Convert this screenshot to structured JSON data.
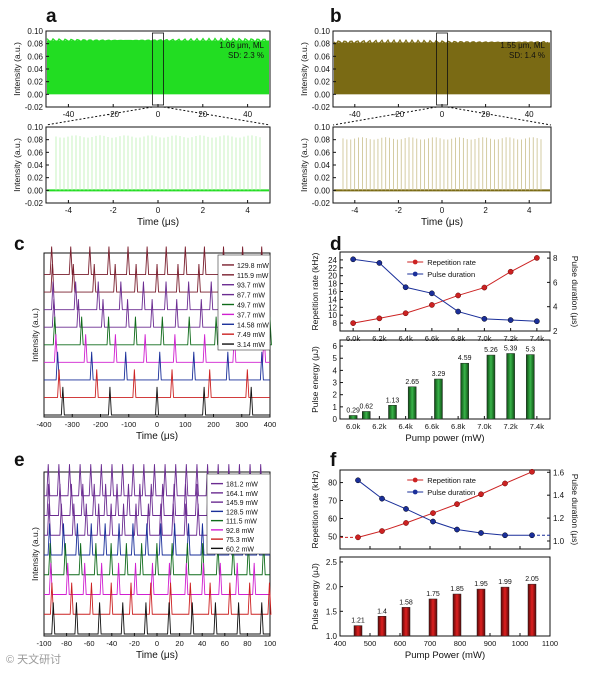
{
  "panel_letters": [
    "a",
    "b",
    "c",
    "d",
    "e",
    "f"
  ],
  "watermark": "© 天文研讨",
  "colors": {
    "green": "#22dd22",
    "olive": "#7a6a14",
    "red": "#cc2222",
    "blue": "#1a2f9a",
    "wine": "#7a1f2e",
    "purple": "#6b2c91",
    "magenta": "#d020d0",
    "darkgreen": "#0f6b1a",
    "black": "#111111"
  },
  "chart_data": [
    {
      "id": "a_top",
      "type": "line",
      "ylabel": "Intensity (a.u.)",
      "yticks": [
        "0.10",
        "0.08",
        "0.06",
        "0.04",
        "0.02",
        "0.00",
        "-0.02"
      ],
      "xticks": [
        "-40",
        "-20",
        "0",
        "20",
        "40"
      ],
      "xlim": [
        -50,
        50
      ],
      "ylim": [
        -0.02,
        0.1
      ],
      "signal_band": [
        0.0,
        0.085
      ],
      "annotation": [
        "1.06 μm, ML",
        "SD: 2.3 %"
      ]
    },
    {
      "id": "a_bottom",
      "type": "line",
      "ylabel": "Intensity (a.u.)",
      "xlabel": "Time (μs)",
      "yticks": [
        "0.10",
        "0.08",
        "0.06",
        "0.04",
        "0.02",
        "0.00",
        "-0.02"
      ],
      "xticks": [
        "-4",
        "-2",
        "0",
        "2",
        "4"
      ],
      "xlim": [
        -5,
        5
      ],
      "ylim": [
        -0.02,
        0.1
      ],
      "pulse_peak": 0.085,
      "pulse_count": 52
    },
    {
      "id": "b_top",
      "type": "line",
      "ylabel": "Intensity (a.u.)",
      "yticks": [
        "0.10",
        "0.08",
        "0.06",
        "0.04",
        "0.02",
        "0.00",
        "-0.02"
      ],
      "xticks": [
        "-40",
        "-20",
        "0",
        "20",
        "40"
      ],
      "xlim": [
        -50,
        50
      ],
      "ylim": [
        -0.02,
        0.1
      ],
      "signal_band": [
        0.0,
        0.082
      ],
      "annotation": [
        "1.55 μm, ML",
        "SD: 1.4 %"
      ]
    },
    {
      "id": "b_bottom",
      "type": "line",
      "ylabel": "Intensity (a.u.)",
      "xlabel": "Time (μs)",
      "yticks": [
        "0.10",
        "0.08",
        "0.06",
        "0.04",
        "0.02",
        "0.00",
        "-0.02"
      ],
      "xticks": [
        "-4",
        "-2",
        "0",
        "2",
        "4"
      ],
      "xlim": [
        -5,
        5
      ],
      "ylim": [
        -0.02,
        0.1
      ],
      "pulse_peak": 0.082,
      "pulse_count": 52
    },
    {
      "id": "c",
      "type": "line",
      "ylabel": "Intensity (a.u.)",
      "xlabel": "Time (μs)",
      "xticks": [
        "-400",
        "-300",
        "-200",
        "-100",
        "0",
        "100",
        "200",
        "300",
        "400"
      ],
      "xlim": [
        -400,
        400
      ],
      "series": [
        {
          "name": "129.8 mW",
          "period": 67.6
        },
        {
          "name": "115.9 mW",
          "period": 74.1
        },
        {
          "name": "93.7 mW",
          "period": 80.0
        },
        {
          "name": "87.7 mW",
          "period": 87.0
        },
        {
          "name": "49.7 mW",
          "period": 95.2
        },
        {
          "name": "37.7 mW",
          "period": 105.3
        },
        {
          "name": "14.58 mW",
          "period": 120.5
        },
        {
          "name": "7.49 mW",
          "period": 133.3
        },
        {
          "name": "3.14 mW",
          "period": 166.7
        }
      ]
    },
    {
      "id": "d_top",
      "type": "line",
      "xlabel": "",
      "ylabel": "Repetition rate (kHz)",
      "y2label": "Pulse duration (μs)",
      "categories": [
        "6.0k",
        "6.2k",
        "6.4k",
        "6.6k",
        "6.8k",
        "7.0k",
        "7.2k",
        "7.4k"
      ],
      "yticks": [
        "8",
        "10",
        "12",
        "14",
        "16",
        "18",
        "20",
        "22",
        "24"
      ],
      "ylim": [
        6,
        26
      ],
      "y2ticks": [
        "2",
        "4",
        "6",
        "8"
      ],
      "y2lim": [
        2,
        8.5
      ],
      "series": [
        {
          "name": "Repetition rate",
          "x": [
            6.0,
            6.2,
            6.4,
            6.6,
            6.8,
            7.0,
            7.2,
            7.4
          ],
          "values": [
            8.0,
            9.2,
            10.5,
            12.6,
            15.0,
            17.0,
            21.0,
            24.5
          ]
        },
        {
          "name": "Pulse duration",
          "x": [
            6.0,
            6.2,
            6.4,
            6.6,
            6.8,
            7.0,
            7.2,
            7.4
          ],
          "values": [
            7.9,
            7.6,
            5.6,
            5.1,
            3.6,
            3.0,
            2.9,
            2.8
          ]
        }
      ]
    },
    {
      "id": "d_bottom",
      "type": "bar",
      "xlabel": "Pump power (mW)",
      "ylabel": "Pulse energy (μJ)",
      "categories": [
        "6.0k",
        "6.2k",
        "6.4k",
        "6.6k",
        "6.8k",
        "7.0k",
        "7.2k",
        "7.4k"
      ],
      "yticks": [
        "0",
        "1",
        "2",
        "3",
        "4",
        "5",
        "6"
      ],
      "ylim": [
        0,
        6.5
      ],
      "values": [
        0.29,
        0.62,
        1.13,
        2.65,
        3.29,
        4.59,
        5.26,
        5.39,
        5.3
      ],
      "labels": [
        "0.29",
        "0.62",
        "1.13",
        "2.65",
        "3.29",
        "4.59",
        "5.26",
        "5.39",
        "5.3"
      ],
      "x": [
        6.0,
        6.1,
        6.3,
        6.45,
        6.65,
        6.85,
        7.05,
        7.2,
        7.35
      ]
    },
    {
      "id": "e",
      "type": "line",
      "ylabel": "Intensity (a.u.)",
      "xlabel": "Time (μs)",
      "xticks": [
        "-100",
        "-80",
        "-60",
        "-40",
        "-20",
        "0",
        "20",
        "40",
        "60",
        "80",
        "100"
      ],
      "xlim": [
        -100,
        100
      ],
      "series": [
        {
          "name": "181.2 mW",
          "period": 9.4
        },
        {
          "name": "164.1 mW",
          "period": 10.1
        },
        {
          "name": "145.9 mW",
          "period": 11.0
        },
        {
          "name": "128.5 mW",
          "period": 12.3
        },
        {
          "name": "111.5 mW",
          "period": 13.5
        },
        {
          "name": "92.8 mW",
          "period": 15.0
        },
        {
          "name": "75.3 mW",
          "period": 17.5
        },
        {
          "name": "60.2 mW",
          "period": 20.5
        }
      ]
    },
    {
      "id": "f_top",
      "type": "line",
      "ylabel": "Repetition rate (kHz)",
      "y2label": "Pulse duration (μs)",
      "xticks": [
        "400",
        "500",
        "600",
        "700",
        "800",
        "900",
        "1000",
        "1100"
      ],
      "xlim": [
        400,
        1100
      ],
      "yticks": [
        "50",
        "60",
        "70",
        "80"
      ],
      "ylim": [
        43,
        87
      ],
      "y2ticks": [
        "1.0",
        "1.2",
        "1.4",
        "1.6"
      ],
      "y2lim": [
        0.93,
        1.62
      ],
      "series": [
        {
          "name": "Repetition rate",
          "x": [
            460,
            540,
            620,
            710,
            790,
            870,
            950,
            1040
          ],
          "values": [
            49.5,
            53.0,
            57.5,
            63.0,
            68.0,
            73.5,
            79.5,
            86.0
          ]
        },
        {
          "name": "Pulse duration",
          "x": [
            460,
            540,
            620,
            710,
            790,
            870,
            950,
            1040
          ],
          "values": [
            1.53,
            1.37,
            1.28,
            1.17,
            1.1,
            1.07,
            1.05,
            1.05
          ]
        }
      ]
    },
    {
      "id": "f_bottom",
      "type": "bar",
      "xlabel": "Pump Power (mW)",
      "ylabel": "Pulse energy (μJ)",
      "xticks": [
        "400",
        "500",
        "600",
        "700",
        "800",
        "900",
        "1000",
        "1100"
      ],
      "xlim": [
        400,
        1100
      ],
      "yticks": [
        "1.0",
        "1.5",
        "2.0",
        "2.5"
      ],
      "ylim": [
        1.0,
        2.6
      ],
      "x": [
        460,
        540,
        620,
        710,
        790,
        870,
        950,
        1040
      ],
      "values": [
        1.21,
        1.4,
        1.58,
        1.75,
        1.85,
        1.95,
        1.99,
        2.05
      ],
      "labels": [
        "1.21",
        "1.4",
        "1.58",
        "1.75",
        "1.85",
        "1.95",
        "1.99",
        "2.05"
      ]
    }
  ]
}
